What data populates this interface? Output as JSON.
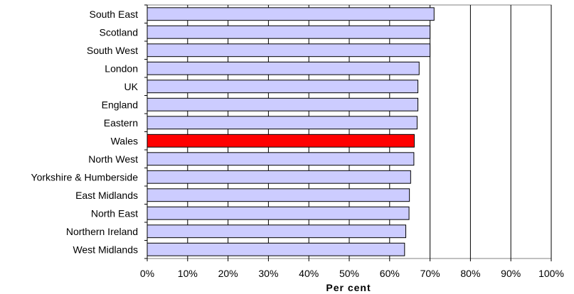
{
  "chart_data": {
    "type": "bar",
    "orientation": "horizontal",
    "title": "",
    "xlabel": "Per cent",
    "ylabel": "",
    "xlim": [
      0,
      100
    ],
    "grid": true,
    "legend": "none",
    "colors": {
      "default_bar": "#ccccff",
      "highlight_bar": "#ff0000",
      "bar_outline": "#000000",
      "gridline": "#000000"
    },
    "categories": [
      "South East",
      "Scotland",
      "South West",
      "London",
      "UK",
      "England",
      "Eastern",
      "Wales",
      "North West",
      "Yorkshire & Humberside",
      "East Midlands",
      "North East",
      "Northern Ireland",
      "West Midlands"
    ],
    "values": [
      71,
      70,
      70,
      67.3,
      67,
      67,
      66.8,
      66.1,
      66,
      65.2,
      64.9,
      64.8,
      64,
      63.7
    ],
    "highlight": [
      "Wales"
    ],
    "xticks": [
      "0%",
      "10%",
      "20%",
      "30%",
      "40%",
      "50%",
      "60%",
      "70%",
      "80%",
      "90%",
      "100%"
    ]
  }
}
